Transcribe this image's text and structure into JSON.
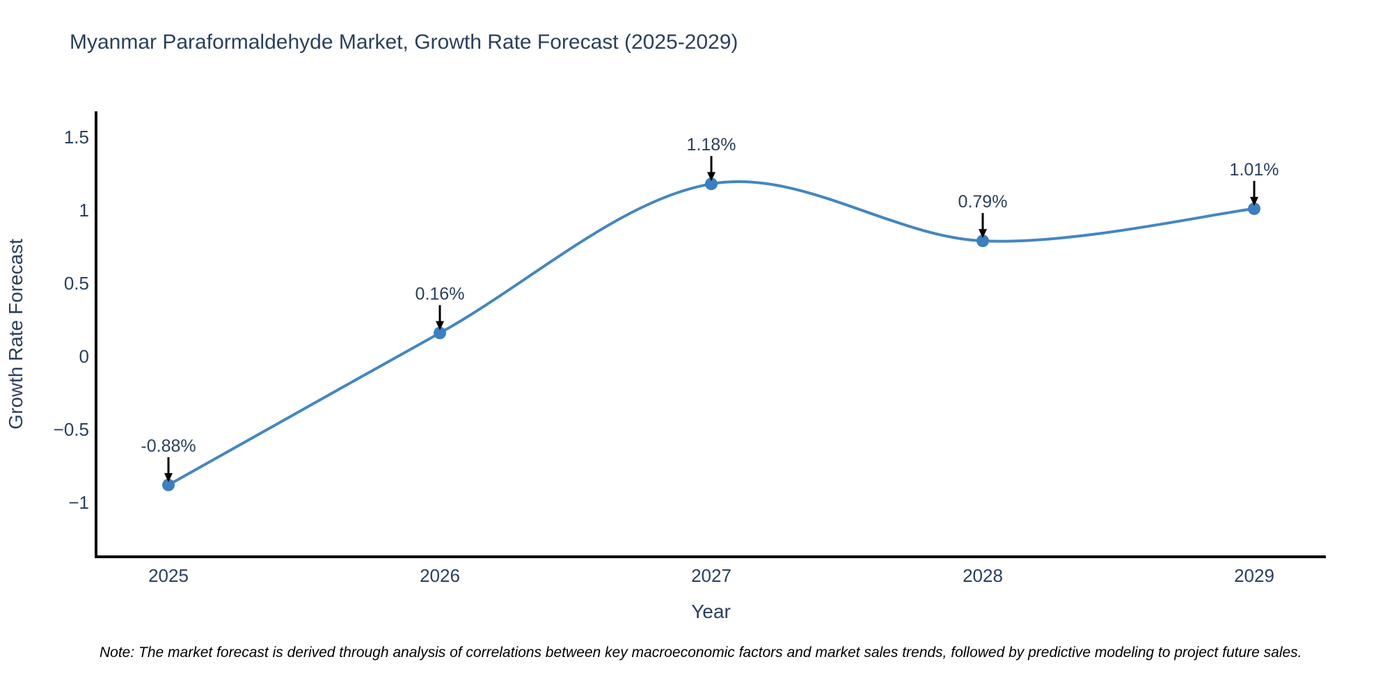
{
  "page": {
    "note": "Note: The market forecast is derived through analysis of correlations between key macroeconomic factors and market sales trends, followed by predictive modeling to project future sales."
  },
  "chart_data": {
    "type": "line",
    "line_shape": "spline",
    "title": "Myanmar Paraformaldehyde Market, Growth Rate Forecast (2025-2029)",
    "xlabel": "Year",
    "ylabel": "Growth Rate Forecast",
    "x": [
      2025,
      2026,
      2027,
      2028,
      2029
    ],
    "y": [
      -0.88,
      0.16,
      1.18,
      0.79,
      1.01
    ],
    "point_labels": [
      "-0.88%",
      "0.16%",
      "1.18%",
      "0.79%",
      "1.01%"
    ],
    "xticks": [
      "2025",
      "2026",
      "2027",
      "2028",
      "2029"
    ],
    "yticks": [
      1.5,
      1,
      0.5,
      0,
      -0.5,
      -1
    ],
    "ylim": [
      -1.37,
      1.68
    ],
    "xlim": [
      2024.73,
      2029.26
    ],
    "grid": false,
    "legend": "none",
    "markers": true,
    "annotation_arrows": true,
    "colors": {
      "line": "#4486c1",
      "marker": "#3a7fc0",
      "axis": "#000000",
      "arrow": "#000000",
      "text": "#2a3f5f",
      "note_text": "#000000",
      "background": "#ffffff"
    }
  }
}
